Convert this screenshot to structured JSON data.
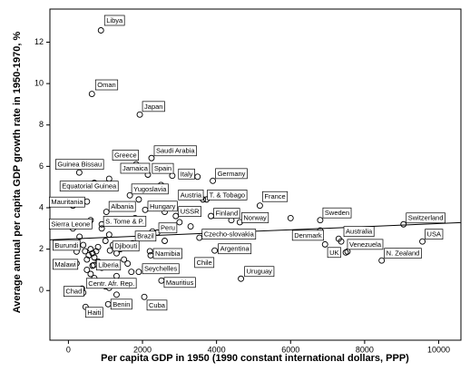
{
  "chart_data": {
    "type": "scatter",
    "x_label": "Per capita GDP in 1950 (1990 constant international dollars, PPP)",
    "y_label": "Average annual per capita GDP growth rate in 1950-1970, %",
    "xlim": [
      -500,
      10600
    ],
    "ylim": [
      -2.4,
      13.6
    ],
    "xticks": [
      0,
      2000,
      4000,
      6000,
      8000,
      10000
    ],
    "yticks": [
      0,
      2,
      4,
      6,
      8,
      10,
      12
    ],
    "grid": false,
    "color": "#000000",
    "x": [
      878,
      634,
      1927,
      2244,
      1829,
      293,
      2146,
      2805,
      3488,
      3900,
      975,
      1659,
      3634,
      3730,
      5170,
      122,
      1024,
      2073,
      2900,
      3850,
      6800,
      4630,
      9050,
      122,
      900,
      2270,
      3537,
      6930,
      1732,
      7366,
      9560,
      220,
      1122,
      7536,
      3950,
      2220,
      7490,
      8460,
      220,
      683,
      3730,
      2073,
      4660,
      2512,
      1100,
      366,
      2049,
      1073,
      463,
      300,
      400,
      450,
      500,
      550,
      600,
      650,
      700,
      750,
      800,
      500,
      600,
      700,
      650,
      800,
      900,
      1000,
      1100,
      1200,
      1300,
      1400,
      1500,
      1600,
      1700,
      1300,
      1500,
      1800,
      1900,
      2000,
      2500,
      1200,
      900,
      600,
      500,
      700,
      1100,
      2600,
      3000,
      2400,
      3300,
      4400,
      6000,
      6800,
      7300,
      2200,
      1000,
      400,
      1300,
      1900,
      2600
    ],
    "values": [
      12.57,
      9.5,
      8.5,
      6.4,
      6.1,
      5.7,
      5.6,
      5.55,
      5.5,
      5.3,
      5.0,
      4.6,
      4.4,
      4.4,
      4.1,
      4.1,
      3.8,
      3.9,
      3.6,
      3.6,
      3.4,
      3.3,
      3.2,
      3.0,
      3.0,
      2.85,
      2.55,
      2.23,
      2.28,
      2.37,
      2.37,
      1.88,
      1.93,
      1.88,
      1.93,
      1.7,
      1.84,
      1.45,
      1.31,
      1.23,
      1.31,
      1.14,
      0.57,
      0.48,
      0.13,
      0.09,
      -0.31,
      -0.66,
      -0.79,
      2.6,
      2.2,
      1.9,
      1.5,
      1.7,
      2.0,
      1.8,
      1.6,
      1.9,
      2.1,
      1.0,
      0.8,
      0.6,
      1.2,
      1.4,
      1.1,
      2.4,
      2.7,
      2.2,
      1.8,
      2.0,
      1.5,
      1.3,
      0.9,
      0.7,
      0.4,
      3.5,
      4.4,
      4.9,
      5.1,
      4.0,
      3.2,
      3.4,
      4.3,
      5.2,
      5.4,
      3.8,
      3.3,
      2.8,
      3.1,
      3.4,
      3.5,
      2.9,
      2.5,
      1.9,
      0.2,
      -0.1,
      -0.2,
      0.9,
      2.4
    ],
    "point_labels": [
      "Libya",
      "Oman",
      "Japan",
      "Saudi Arabia",
      "Greece",
      "Guinea Bissau",
      "Jamaica",
      "Spain",
      "Italy",
      "Germany",
      "Equatorial Guinea",
      "Yugoslavia",
      "Austria",
      "T. & Tobago",
      "France",
      "Mauritania",
      "Albania",
      "Hungary",
      "USSR",
      "Finland",
      "Sweden",
      "Norway",
      "Switzerland",
      "Sierra Leone",
      "S. Tome & P.",
      "Peru",
      "Czecho-slovakia",
      "Denmark",
      "Brazil",
      "Australia",
      "USA",
      "Burundi",
      "Djibouti",
      "Venezuela",
      "Argentina",
      "Namibia",
      "UK",
      "N. Zealand",
      "Malawi",
      "Liberia",
      "Chile",
      "Seychelles",
      "Uruguay",
      "Mauritius",
      "Centr. Afr. Rep.",
      "Chad",
      "Cuba",
      "Benin",
      "Haiti",
      null,
      null,
      null,
      null,
      null,
      null,
      null,
      null,
      null,
      null,
      null,
      null,
      null,
      null,
      null,
      null,
      null,
      null,
      null,
      null,
      null,
      null,
      null,
      null,
      null,
      null,
      null,
      null,
      null,
      null,
      null,
      null,
      null,
      null,
      null,
      null,
      null,
      null,
      null,
      null,
      null,
      null,
      null,
      null,
      null,
      null,
      null,
      null,
      null,
      null
    ],
    "trend_line": {
      "x": [
        -500,
        10600
      ],
      "y": [
        2.45,
        3.28
      ]
    }
  }
}
